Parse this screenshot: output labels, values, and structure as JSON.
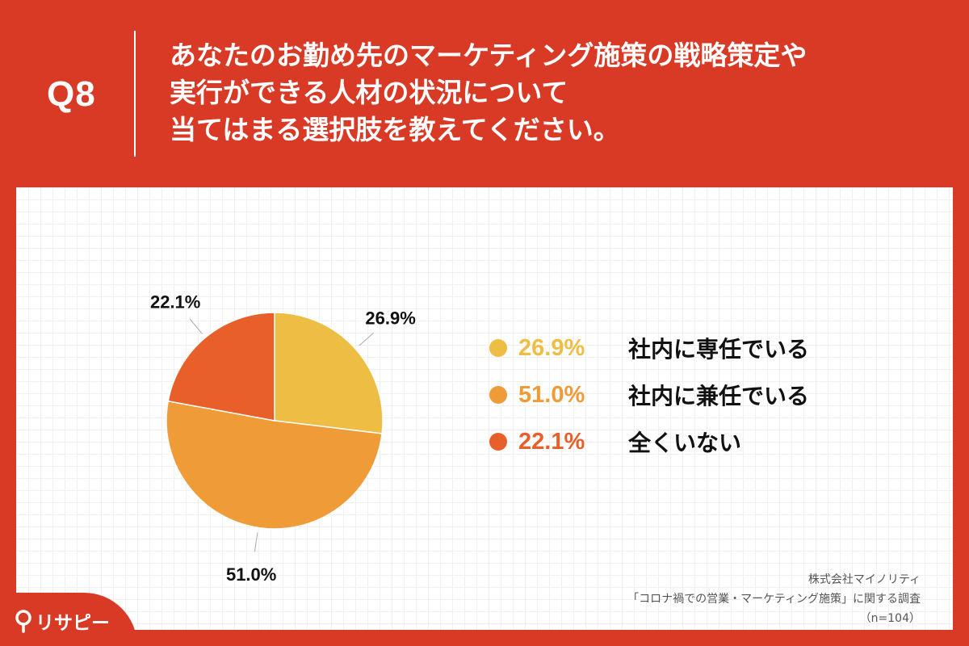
{
  "header": {
    "q_label": "Q8",
    "question_lines": [
      "あなたのお勤め先のマーケティング施策の戦略策定や",
      "実行ができる人材の状況について",
      "当てはまる選択肢を教えてください。"
    ]
  },
  "chart_data": {
    "type": "pie",
    "slices": [
      {
        "label": "社内に専任でいる",
        "value": 26.9,
        "value_label": "26.9%",
        "color": "#eebd43"
      },
      {
        "label": "社内に兼任でいる",
        "value": 51.0,
        "value_label": "51.0%",
        "color": "#ee9b38"
      },
      {
        "label": "全くいない",
        "value": 22.1,
        "value_label": "22.1%",
        "color": "#e85f2a"
      }
    ]
  },
  "source": {
    "company": "株式会社マイノリティ",
    "survey": "「コロナ禍での営業・マーケティング施策」に関する調査",
    "n": "（n=104）"
  },
  "brand": {
    "name": "リサピー",
    "logo_icon": "pin-icon",
    "background": "#d83a26"
  }
}
